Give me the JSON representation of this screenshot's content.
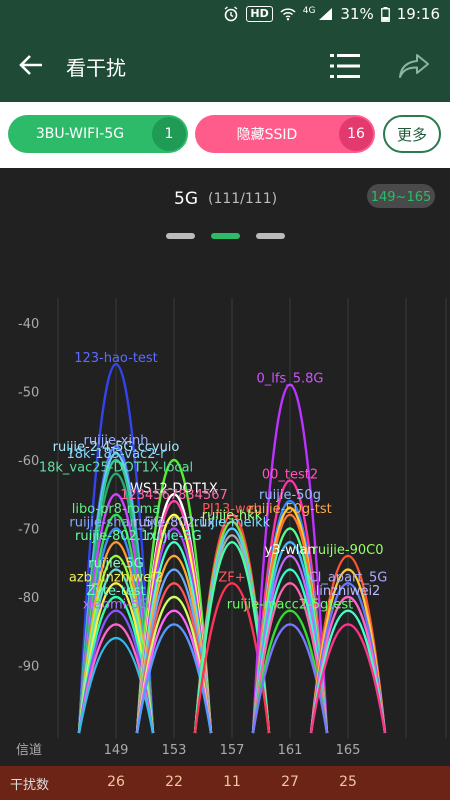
{
  "status": {
    "hd": "HD",
    "net": "4G",
    "battery": "31%",
    "time": "19:16"
  },
  "appbar": {
    "title": "看干扰"
  },
  "filters": {
    "ssid_chip": {
      "label": "3BU-WIFI-5G",
      "count": "1"
    },
    "hidden_chip": {
      "label": "隐藏SSID",
      "count": "16"
    },
    "more_label": "更多"
  },
  "chart_header": {
    "band": "5G",
    "counts": "(111/111)",
    "range_badge": "149~165"
  },
  "pager": {
    "pages": 3,
    "active": 1
  },
  "chart_data": {
    "type": "area",
    "ylabel": "",
    "xlabel": "信道",
    "ylim": [
      -97,
      -37
    ],
    "yticks": [
      -40,
      -50,
      -60,
      -70,
      -80,
      -90
    ],
    "channels": [
      149,
      153,
      157,
      161,
      165
    ],
    "interference_label": "干扰数",
    "interference": [
      26,
      22,
      11,
      27,
      25
    ],
    "networks": [
      {
        "ch": 149,
        "rssi": -46,
        "color": "#3344ee",
        "label": "123-hao-test",
        "labelColor": "#5b6cff"
      },
      {
        "ch": 149,
        "rssi": -58,
        "color": "#5577ff",
        "label": "ruijie-xinh",
        "labelColor": "#a0b0ff"
      },
      {
        "ch": 149,
        "rssi": -59,
        "color": "#66ccff",
        "label": "ruijie-2.4-5G.ccyuio",
        "labelColor": "#a8e8ff"
      },
      {
        "ch": 149,
        "rssi": -60,
        "color": "#33cc99",
        "label": "18k-185-vac2-r",
        "labelColor": "#7fd6ff"
      },
      {
        "ch": 149,
        "rssi": -62,
        "color": "#2aa870",
        "label": "18k_vac25-DOT1X-local",
        "labelColor": "#5fe0a0"
      },
      {
        "ch": 149,
        "rssi": -65,
        "color": "#cc44ff",
        "label": "",
        "labelColor": ""
      },
      {
        "ch": 149,
        "rssi": -68,
        "color": "#33dd55",
        "label": "libo-pr8-roma",
        "labelColor": "#66ee88"
      },
      {
        "ch": 149,
        "rssi": -70,
        "color": "#4488ff",
        "label": "ruijie-shan_5G",
        "labelColor": "#88aaff"
      },
      {
        "ch": 149,
        "rssi": -72,
        "color": "#ff9933",
        "label": "ruijie-802.1x",
        "labelColor": "#66ff99"
      },
      {
        "ch": 149,
        "rssi": -74,
        "color": "#99ff33",
        "label": "",
        "labelColor": ""
      },
      {
        "ch": 149,
        "rssi": -76,
        "color": "#66ddcc",
        "label": "ruijie-5G",
        "labelColor": "#88ffcc"
      },
      {
        "ch": 149,
        "rssi": -78,
        "color": "#ffee44",
        "label": "azb_linzhiwei2",
        "labelColor": "#eeee55"
      },
      {
        "ch": 149,
        "rssi": -80,
        "color": "#33ffaa",
        "label": "Zyte-test",
        "labelColor": "#66ffcc"
      },
      {
        "ch": 149,
        "rssi": -82,
        "color": "#8855ff",
        "label": "xiaomi-5G",
        "labelColor": "#aa77ff"
      },
      {
        "ch": 149,
        "rssi": -84,
        "color": "#ff66cc",
        "label": "",
        "labelColor": ""
      },
      {
        "ch": 149,
        "rssi": -86,
        "color": "#33bbee",
        "label": "",
        "labelColor": ""
      },
      {
        "ch": 153,
        "rssi": -60,
        "color": "#55ee33",
        "label": "",
        "labelColor": ""
      },
      {
        "ch": 153,
        "rssi": -65,
        "color": "#ffffff",
        "label": "WS12-DOT1X",
        "labelColor": "#ffffff"
      },
      {
        "ch": 153,
        "rssi": -66,
        "color": "#ff44aa",
        "label": "1234567834567",
        "labelColor": "#ff66aa"
      },
      {
        "ch": 153,
        "rssi": -68,
        "color": "#ffff44",
        "label": "",
        "labelColor": ""
      },
      {
        "ch": 153,
        "rssi": -70,
        "color": "#aa44ff",
        "label": "ruijie-802.1x",
        "labelColor": "#bbbbff"
      },
      {
        "ch": 153,
        "rssi": -72,
        "color": "#44ffcc",
        "label": "ruijie-5G",
        "labelColor": "#55ffdd"
      },
      {
        "ch": 153,
        "rssi": -74,
        "color": "#ffaa33",
        "label": "",
        "labelColor": ""
      },
      {
        "ch": 153,
        "rssi": -76,
        "color": "#66aaff",
        "label": "",
        "labelColor": ""
      },
      {
        "ch": 153,
        "rssi": -78,
        "color": "#ff5555",
        "label": "",
        "labelColor": ""
      },
      {
        "ch": 153,
        "rssi": -80,
        "color": "#ccff66",
        "label": "",
        "labelColor": ""
      },
      {
        "ch": 153,
        "rssi": -82,
        "color": "#ff66ff",
        "label": "",
        "labelColor": ""
      },
      {
        "ch": 153,
        "rssi": -84,
        "color": "#5599ff",
        "label": "",
        "labelColor": ""
      },
      {
        "ch": 157,
        "rssi": -68,
        "color": "#ff4444",
        "label": "PJ13-web",
        "labelColor": "#ff5555"
      },
      {
        "ch": 157,
        "rssi": -69,
        "color": "#88dd33",
        "label": "ruijie-hkk",
        "labelColor": "#a0ff88"
      },
      {
        "ch": 157,
        "rssi": -70,
        "color": "#55ccff",
        "label": "ruijie-meikk",
        "labelColor": "#77ddff"
      },
      {
        "ch": 157,
        "rssi": -71,
        "color": "#aaaaaa",
        "label": "",
        "labelColor": ""
      },
      {
        "ch": 157,
        "rssi": -72,
        "color": "#44ffaa",
        "label": "",
        "labelColor": ""
      },
      {
        "ch": 157,
        "rssi": -78,
        "color": "#ff3355",
        "label": "ZF+",
        "labelColor": "#ff5566"
      },
      {
        "ch": 161,
        "rssi": -49,
        "color": "#bb33ff",
        "label": "0_lfs_5.8G",
        "labelColor": "#cc55ff"
      },
      {
        "ch": 161,
        "rssi": -63,
        "color": "#ff33aa",
        "label": "00_test2",
        "labelColor": "#ff55bb"
      },
      {
        "ch": 161,
        "rssi": -66,
        "color": "#3388ff",
        "label": "ruijie-50g",
        "labelColor": "#99bbff"
      },
      {
        "ch": 161,
        "rssi": -67,
        "color": "#ffcc33",
        "label": "",
        "labelColor": ""
      },
      {
        "ch": 161,
        "rssi": -68,
        "color": "#ff7733",
        "label": "ruijie-50g-tst",
        "labelColor": "#ffaa44"
      },
      {
        "ch": 161,
        "rssi": -70,
        "color": "#55ff88",
        "label": "",
        "labelColor": ""
      },
      {
        "ch": 161,
        "rssi": -72,
        "color": "#44bbff",
        "label": "",
        "labelColor": ""
      },
      {
        "ch": 161,
        "rssi": -74,
        "color": "#cc66ff",
        "label": "y3-wlan",
        "labelColor": "#ffffff"
      },
      {
        "ch": 161,
        "rssi": -76,
        "color": "#33ffcc",
        "label": "",
        "labelColor": ""
      },
      {
        "ch": 161,
        "rssi": -78,
        "color": "#ff66aa",
        "label": "",
        "labelColor": ""
      },
      {
        "ch": 161,
        "rssi": -82,
        "color": "#33dd33",
        "label": "ruijie-macc2-5gtest",
        "labelColor": "#66ff66"
      },
      {
        "ch": 161,
        "rssi": -84,
        "color": "#7777ff",
        "label": "",
        "labelColor": ""
      },
      {
        "ch": 165,
        "rssi": -74,
        "color": "#ff5533",
        "label": "ruijie-90C0",
        "labelColor": "#99ff66"
      },
      {
        "ch": 165,
        "rssi": -76,
        "color": "#ffcc33",
        "label": "",
        "labelColor": ""
      },
      {
        "ch": 165,
        "rssi": -78,
        "color": "#6677ff",
        "label": "Cl_apart_5G",
        "labelColor": "#aaaaff"
      },
      {
        "ch": 165,
        "rssi": -80,
        "color": "#ff66cc",
        "label": "linzhiwei2",
        "labelColor": "#bbbbff"
      },
      {
        "ch": 165,
        "rssi": -82,
        "color": "#44ffcc",
        "label": "",
        "labelColor": ""
      },
      {
        "ch": 165,
        "rssi": -84,
        "color": "#ff3388",
        "label": "",
        "labelColor": ""
      }
    ]
  }
}
